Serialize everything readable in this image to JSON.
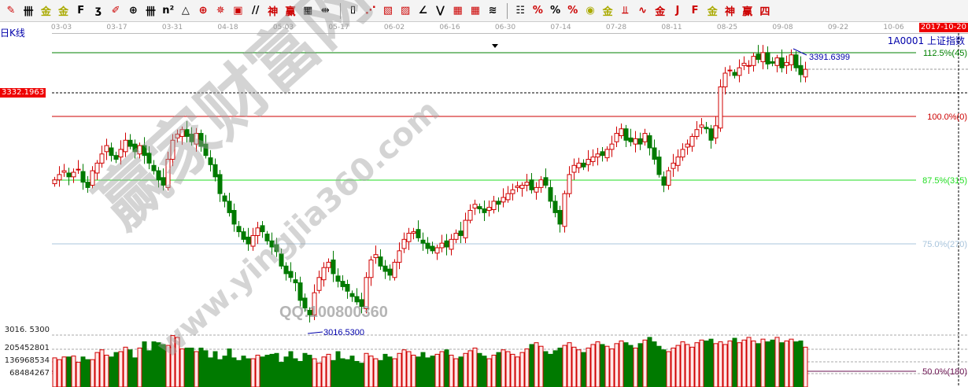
{
  "toolbar": [
    {
      "name": "pen-icon",
      "glyph": "✎",
      "color": "#c00"
    },
    {
      "name": "grid-lines-icon",
      "glyph": "卌",
      "color": "#000"
    },
    {
      "name": "gold-line-icon",
      "glyph": "金",
      "color": "#aa0"
    },
    {
      "name": "gold-line2-icon",
      "glyph": "金",
      "color": "#aa0"
    },
    {
      "name": "f-line-icon",
      "glyph": "F",
      "color": "#000"
    },
    {
      "name": "spiral-icon",
      "glyph": "ʒ",
      "color": "#000"
    },
    {
      "name": "paint-icon",
      "glyph": "✐",
      "color": "#c00"
    },
    {
      "name": "circle-grid-icon",
      "glyph": "⊕",
      "color": "#000"
    },
    {
      "name": "parallel-lines-icon",
      "glyph": "卌",
      "color": "#000"
    },
    {
      "name": "n2-icon",
      "glyph": "n²",
      "color": "#000"
    },
    {
      "name": "triangle-icon",
      "glyph": "△",
      "color": "#000"
    },
    {
      "name": "target-icon",
      "glyph": "⊕",
      "color": "#c00"
    },
    {
      "name": "star-icon",
      "glyph": "✵",
      "color": "#c00"
    },
    {
      "name": "square-target-icon",
      "glyph": "▣",
      "color": "#c00"
    },
    {
      "name": "slash-icon",
      "glyph": "//",
      "color": "#000"
    },
    {
      "name": "shen-icon",
      "glyph": "神",
      "color": "#c00"
    },
    {
      "name": "ying-icon",
      "glyph": "赢",
      "color": "#c00"
    },
    {
      "name": "table-icon",
      "glyph": "▦",
      "color": "#000"
    },
    {
      "name": "measure-icon",
      "glyph": "⇹",
      "color": "#000"
    },
    {
      "name": "box-icon",
      "glyph": "⌷",
      "color": "#000"
    },
    {
      "name": "fan-icon",
      "glyph": "⋰",
      "color": "#c00"
    },
    {
      "name": "fan-box-icon",
      "glyph": "▧",
      "color": "#c00"
    },
    {
      "name": "fan-box2-icon",
      "glyph": "▨",
      "color": "#c00"
    },
    {
      "name": "angle-icon",
      "glyph": "∠",
      "color": "#000"
    },
    {
      "name": "v-icon",
      "glyph": "⋁",
      "color": "#000"
    },
    {
      "name": "grid-box-icon",
      "glyph": "▦",
      "color": "#c00"
    },
    {
      "name": "grid-box2-icon",
      "glyph": "▦",
      "color": "#c00"
    },
    {
      "name": "diagonal-lines-icon",
      "glyph": "≋",
      "color": "#000"
    },
    {
      "name": "price-table-icon",
      "glyph": "☷",
      "color": "#000"
    },
    {
      "name": "percent-box-icon",
      "glyph": "%",
      "color": "#c00"
    },
    {
      "name": "percent-icon",
      "glyph": "%",
      "color": "#000"
    },
    {
      "name": "percent-line-icon",
      "glyph": "%",
      "color": "#c00"
    },
    {
      "name": "gold-coin-icon",
      "glyph": "◉",
      "color": "#aa0"
    },
    {
      "name": "gold-lines-icon",
      "glyph": "金",
      "color": "#aa0"
    },
    {
      "name": "candle-fan-icon",
      "glyph": "⫫",
      "color": "#c00"
    },
    {
      "name": "wave-icon",
      "glyph": "∿",
      "color": "#c00"
    },
    {
      "name": "gold-box-icon",
      "glyph": "金",
      "color": "#c00"
    },
    {
      "name": "j-angle-icon",
      "glyph": "J",
      "color": "#c00"
    },
    {
      "name": "f-angle-icon",
      "glyph": "F",
      "color": "#c00"
    },
    {
      "name": "gold-angle-icon",
      "glyph": "金",
      "color": "#aa0"
    },
    {
      "name": "shen-angle-icon",
      "glyph": "神",
      "color": "#c00"
    },
    {
      "name": "ying-angle-icon",
      "glyph": "赢",
      "color": "#c00"
    },
    {
      "name": "si-angle-icon",
      "glyph": "四",
      "color": "#c00"
    }
  ],
  "period": "日K线",
  "symbol": "1A0001 上证指数",
  "current_date": "2017-10-20",
  "price_marker": "3332.1963",
  "watermark": {
    "site_cn": "赢家财富网",
    "url": "www.yingjia360.com",
    "qq": "QQ:100800360"
  },
  "colors": {
    "up": "#d00000",
    "down": "#007a00",
    "fib_112": "#008000",
    "fib_100": "#cc0000",
    "fib_875": "#22dd22",
    "fib_75": "#a8c4dc",
    "fib_50": "#6a1050"
  },
  "chart_data": {
    "type": "candlestick",
    "x_tick_labels": [
      "03-03",
      "03-17",
      "03-31",
      "04-18",
      "05-03",
      "05-17",
      "06-02",
      "06-16",
      "06-30",
      "07-14",
      "07-28",
      "08-11",
      "08-25",
      "09-08",
      "09-22",
      "10-06"
    ],
    "closes": [
      3218,
      3225,
      3230,
      3222,
      3228,
      3232,
      3215,
      3208,
      3230,
      3240,
      3252,
      3263,
      3250,
      3245,
      3258,
      3270,
      3262,
      3255,
      3263,
      3250,
      3240,
      3230,
      3218,
      3211,
      3245,
      3270,
      3278,
      3284,
      3275,
      3268,
      3279,
      3262,
      3250,
      3238,
      3222,
      3200,
      3190,
      3175,
      3160,
      3150,
      3140,
      3134,
      3145,
      3155,
      3150,
      3138,
      3130,
      3124,
      3105,
      3095,
      3090,
      3083,
      3060,
      3050,
      3041,
      3070,
      3090,
      3103,
      3110,
      3095,
      3085,
      3078,
      3072,
      3065,
      3058,
      3052,
      3090,
      3113,
      3120,
      3105,
      3098,
      3093,
      3110,
      3125,
      3140,
      3148,
      3150,
      3142,
      3135,
      3128,
      3125,
      3129,
      3135,
      3130,
      3140,
      3148,
      3145,
      3165,
      3178,
      3186,
      3180,
      3175,
      3182,
      3190,
      3186,
      3195,
      3200,
      3205,
      3210,
      3211,
      3215,
      3205,
      3208,
      3218,
      3211,
      3190,
      3175,
      3160,
      3200,
      3225,
      3237,
      3240,
      3235,
      3245,
      3248,
      3252,
      3250,
      3258,
      3265,
      3279,
      3285,
      3270,
      3268,
      3272,
      3265,
      3279,
      3260,
      3245,
      3225,
      3211,
      3230,
      3240,
      3248,
      3258,
      3265,
      3275,
      3284,
      3290,
      3285,
      3270,
      3289,
      3340,
      3358,
      3362,
      3355,
      3365,
      3371,
      3368,
      3380,
      3376,
      3385,
      3370,
      3371,
      3378,
      3365,
      3372,
      3382,
      3365,
      3356,
      3363
    ],
    "volumes_millions": [
      155,
      145,
      160,
      160,
      165,
      130,
      160,
      145,
      145,
      185,
      200,
      170,
      160,
      185,
      190,
      215,
      200,
      155,
      210,
      245,
      195,
      245,
      240,
      230,
      225,
      280,
      270,
      205,
      210,
      210,
      190,
      210,
      195,
      155,
      190,
      145,
      165,
      205,
      155,
      140,
      165,
      150,
      150,
      170,
      160,
      170,
      175,
      180,
      130,
      160,
      190,
      150,
      135,
      180,
      170,
      150,
      125,
      160,
      175,
      140,
      190,
      150,
      145,
      165,
      135,
      125,
      180,
      165,
      150,
      140,
      175,
      160,
      150,
      180,
      200,
      190,
      170,
      160,
      185,
      155,
      165,
      175,
      190,
      200,
      170,
      150,
      160,
      180,
      195,
      210,
      180,
      165,
      150,
      170,
      185,
      200,
      190,
      175,
      160,
      185,
      205,
      230,
      240,
      220,
      190,
      175,
      195,
      210,
      225,
      240,
      215,
      200,
      185,
      210,
      230,
      245,
      230,
      220,
      205,
      235,
      250,
      240,
      225,
      210,
      235,
      255,
      270,
      245,
      220,
      200,
      190,
      210,
      225,
      245,
      230,
      215,
      240,
      255,
      250,
      260,
      235,
      245,
      230,
      250,
      265,
      240,
      255,
      270,
      250,
      235,
      260,
      245,
      255,
      270,
      240,
      250,
      260,
      245,
      250,
      215
    ],
    "price_range": [
      3016.53,
      3391.6399
    ],
    "annotations": {
      "high": "3391.6399",
      "low": "3016.5300"
    },
    "volume_axis_labels": [
      "205452801",
      "136968534",
      "68484267"
    ],
    "low_axis_label": "3016. 5300",
    "fib_levels": [
      {
        "label": "112.5%(45)",
        "price": 3392
      },
      {
        "label": "100.0%(0)",
        "price": 3302
      },
      {
        "label": "87.5%(315)",
        "price": 3218
      },
      {
        "label": "75.0%(270)",
        "price": 3134
      },
      {
        "label": "50.0%(180)",
        "price": null
      }
    ],
    "grid": false
  }
}
